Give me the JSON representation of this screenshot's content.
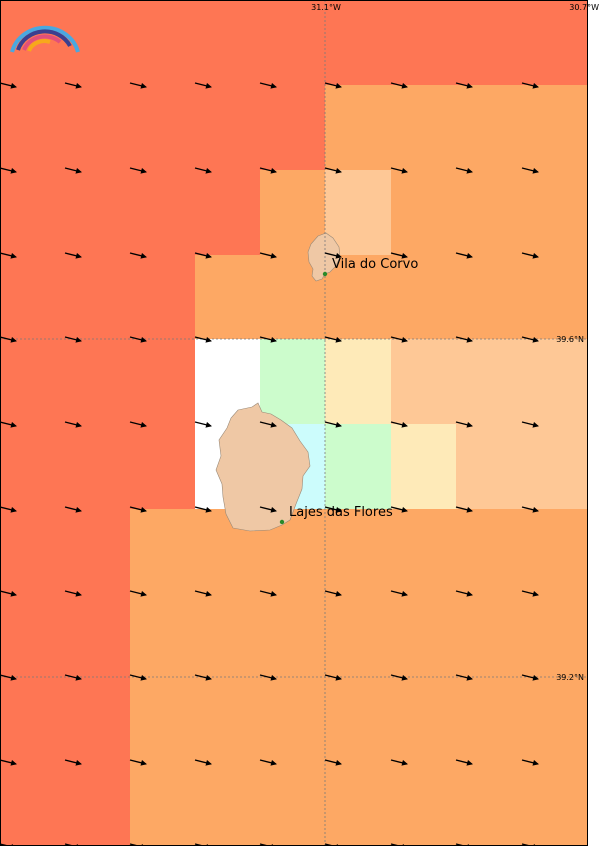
{
  "colors": {
    "dark_orange": "#fe7654",
    "orange": "#fda864",
    "peach": "#fec896",
    "cream": "#feeab8",
    "mint": "#ccfccc",
    "cyan": "#ccfcfc",
    "white": "#ffffff",
    "island": "#efc8a5",
    "town_dot": "#2a8a2a",
    "arrow": "#000000",
    "grid": "#7a7a7a"
  },
  "grid_labels": {
    "lon_mid": "31.1°W",
    "lon_right": "30.7°W",
    "lat_upper": "39.6°N",
    "lat_lower": "39.2°N"
  },
  "places": [
    {
      "name": "Vila do Corvo"
    },
    {
      "name": "Lajes das Flores"
    }
  ],
  "logo": {
    "icon": "rainbow-logo-icon"
  },
  "arrow_icon": "wind-arrow-icon"
}
